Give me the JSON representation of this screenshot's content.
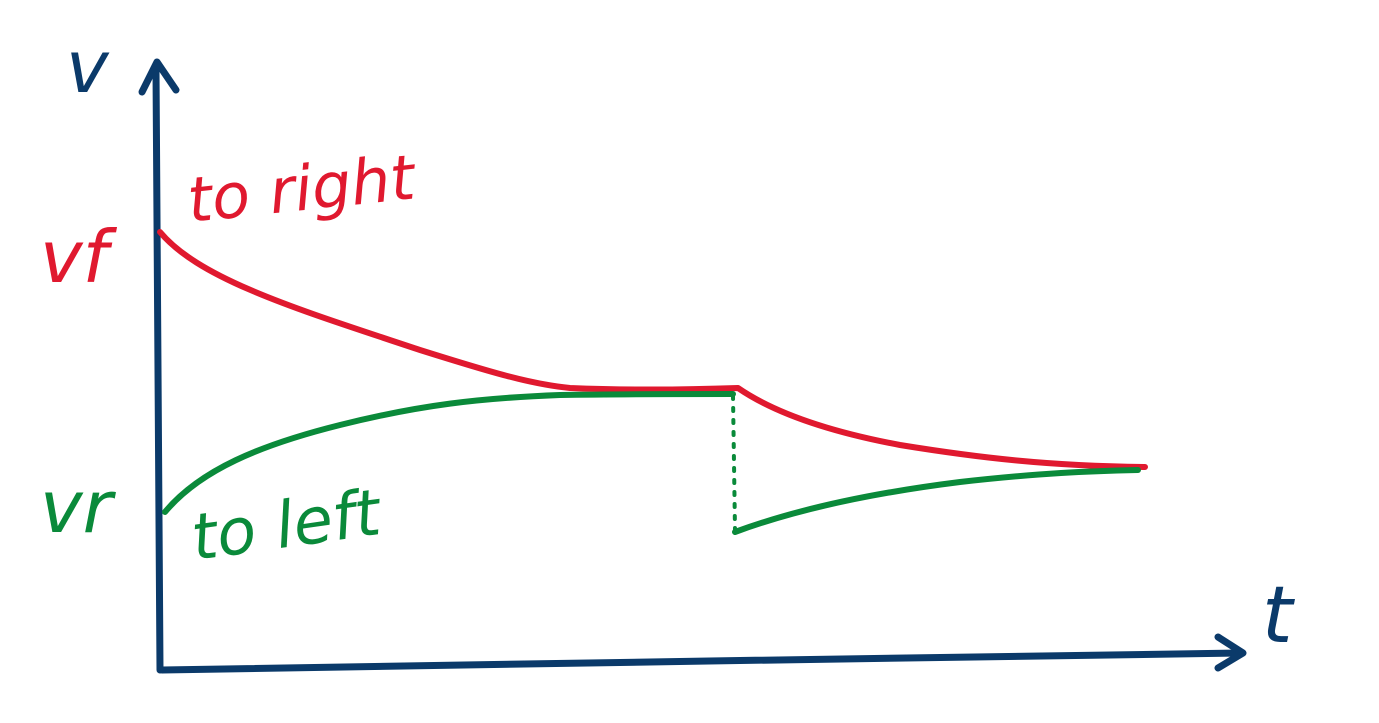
{
  "colors": {
    "axis": "#0b3a6a",
    "red": "#e0192f",
    "green": "#0a8a3a",
    "background": "#ffffff"
  },
  "labels": {
    "y_axis": "v",
    "x_axis": "t",
    "vf": "vf",
    "vr": "vr",
    "to_right": "to right",
    "to_left": "to left"
  }
}
